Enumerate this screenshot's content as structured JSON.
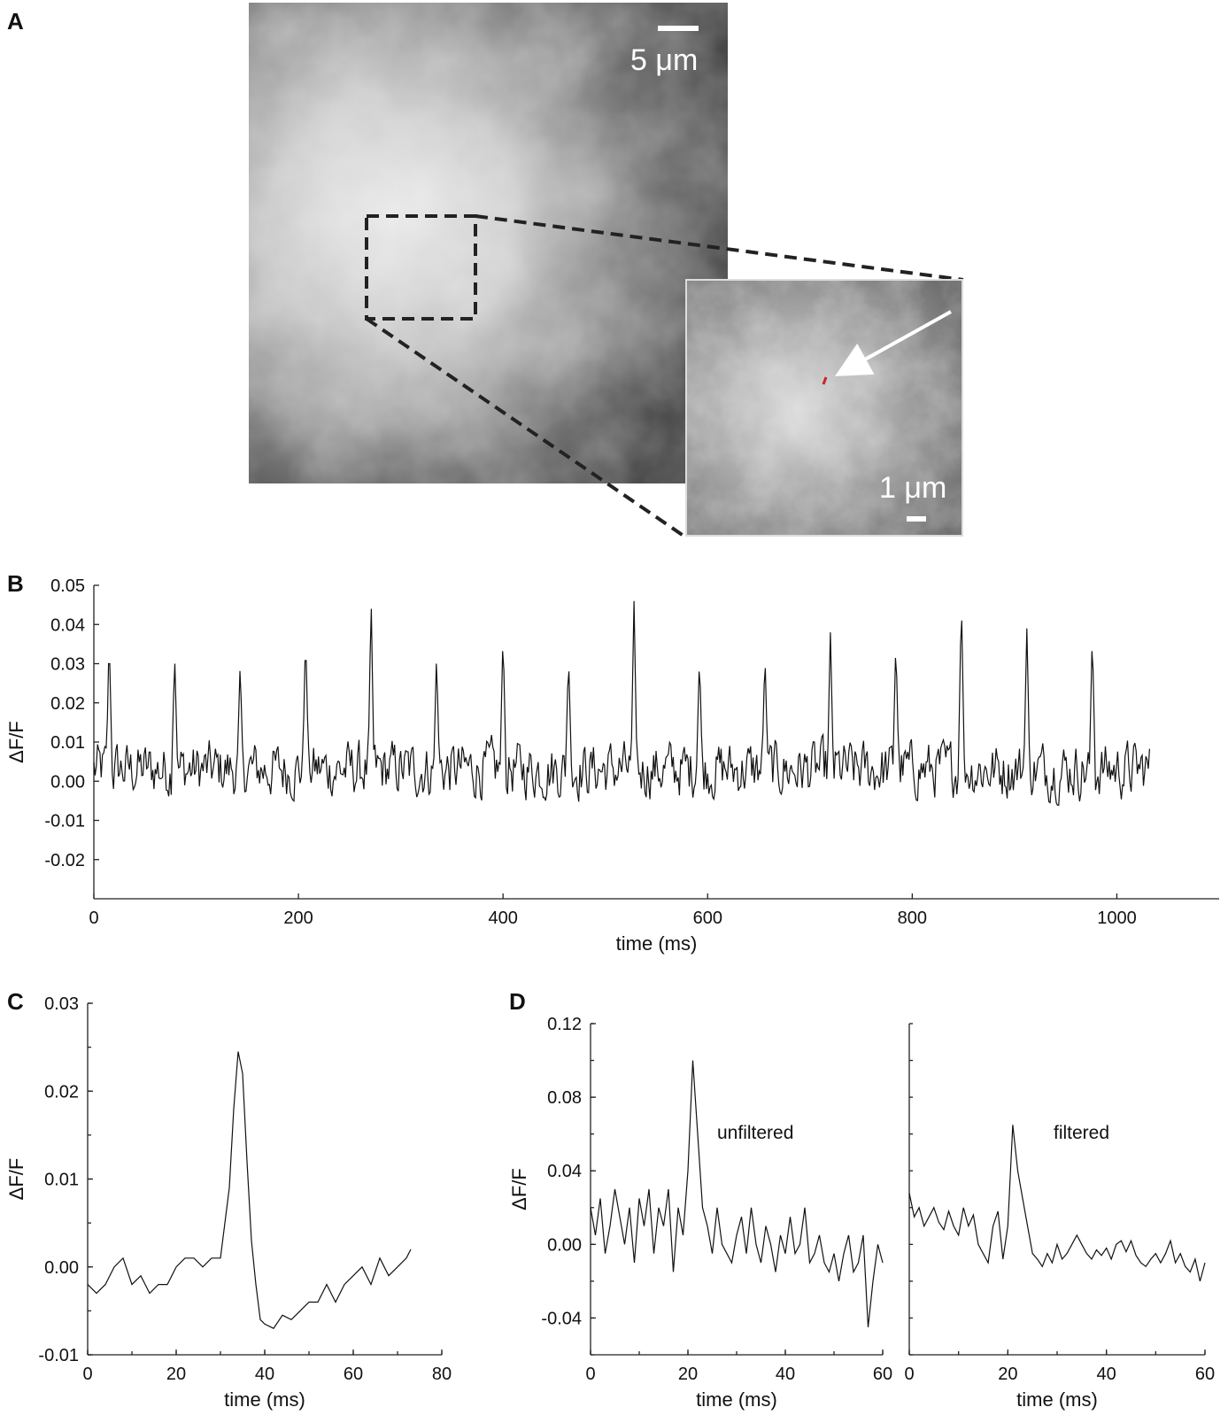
{
  "panels": {
    "A": {
      "letter": "A",
      "scalebar_main": "5 μm",
      "scalebar_inset": "1 μm"
    },
    "B": {
      "letter": "B"
    },
    "C": {
      "letter": "C"
    },
    "D": {
      "letter": "D",
      "annotation_left": "unfiltered",
      "annotation_right": "filtered"
    }
  },
  "chart_data": [
    {
      "panel": "B",
      "type": "line",
      "xlabel": "time (ms)",
      "ylabel": "ΔF/F",
      "xlim": [
        0,
        1100
      ],
      "ylim": [
        -0.03,
        0.05
      ],
      "xticks": [
        0,
        200,
        400,
        600,
        800,
        1000
      ],
      "xtick_labels": [
        "0",
        "200",
        "400",
        "600",
        "800",
        "1000"
      ],
      "yticks": [
        0.05,
        0.04,
        0.03,
        0.02,
        0.01,
        0.0,
        -0.01,
        -0.02
      ],
      "ytick_labels": [
        "0.05",
        "0.04",
        "0.03",
        "0.02",
        "0.01",
        "0.00",
        "-0.01",
        "-0.02"
      ],
      "x_end": 1033,
      "spike_times": [
        15,
        79,
        143,
        207,
        271,
        335,
        400,
        464,
        528,
        592,
        656,
        720,
        784,
        848,
        912,
        976
      ],
      "spike_peaks": [
        0.035,
        0.03,
        0.028,
        0.036,
        0.045,
        0.03,
        0.036,
        0.03,
        0.044,
        0.03,
        0.031,
        0.036,
        0.034,
        0.045,
        0.037,
        0.036
      ],
      "baseline_mean": 0.003,
      "noise_range": [
        -0.015,
        0.015
      ]
    },
    {
      "panel": "C",
      "type": "line",
      "xlabel": "time (ms)",
      "ylabel": "ΔF/F",
      "xlim": [
        0,
        80
      ],
      "ylim": [
        -0.01,
        0.03
      ],
      "xticks": [
        0,
        20,
        40,
        60,
        80
      ],
      "xtick_labels": [
        "0",
        "20",
        "40",
        "60",
        "80"
      ],
      "yticks": [
        0.03,
        0.02,
        0.01,
        0.0,
        -0.01
      ],
      "ytick_labels": [
        "0.03",
        "0.02",
        "0.01",
        "0.00",
        "-0.01"
      ],
      "x": [
        0,
        2,
        4,
        6,
        8,
        10,
        12,
        14,
        16,
        18,
        20,
        22,
        24,
        26,
        28,
        30,
        32,
        33,
        34,
        35,
        36,
        37,
        38,
        39,
        40,
        42,
        44,
        46,
        48,
        50,
        52,
        54,
        56,
        58,
        60,
        62,
        64,
        66,
        68,
        70,
        72,
        73
      ],
      "y": [
        -0.002,
        -0.003,
        -0.002,
        0.0,
        0.001,
        -0.002,
        -0.001,
        -0.003,
        -0.002,
        -0.002,
        0.0,
        0.001,
        0.001,
        0.0,
        0.001,
        0.001,
        0.009,
        0.018,
        0.0245,
        0.022,
        0.012,
        0.003,
        -0.002,
        -0.006,
        -0.0065,
        -0.007,
        -0.0055,
        -0.006,
        -0.005,
        -0.004,
        -0.004,
        -0.002,
        -0.004,
        -0.002,
        -0.001,
        0.0,
        -0.002,
        0.001,
        -0.001,
        0.0,
        0.001,
        0.002
      ]
    },
    {
      "panel": "D-left",
      "type": "line",
      "xlabel": "time (ms)",
      "ylabel": "ΔF/F",
      "xlim": [
        0,
        60
      ],
      "ylim": [
        -0.06,
        0.12
      ],
      "xticks": [
        0,
        20,
        40,
        60
      ],
      "xtick_labels": [
        "0",
        "20",
        "40",
        "60"
      ],
      "yticks": [
        0.12,
        0.08,
        0.04,
        0.0,
        -0.04
      ],
      "ytick_labels": [
        "0.12",
        "0.08",
        "0.04",
        "0.00",
        "-0.04"
      ],
      "x": [
        0,
        1,
        2,
        3,
        4,
        5,
        6,
        7,
        8,
        9,
        10,
        11,
        12,
        13,
        14,
        15,
        16,
        17,
        18,
        19,
        20,
        21,
        22,
        23,
        24,
        25,
        26,
        27,
        28,
        29,
        30,
        31,
        32,
        33,
        34,
        35,
        36,
        37,
        38,
        39,
        40,
        41,
        42,
        43,
        44,
        45,
        46,
        47,
        48,
        49,
        50,
        51,
        52,
        53,
        54,
        55,
        56,
        57,
        58,
        59,
        60
      ],
      "y": [
        0.02,
        0.005,
        0.025,
        -0.005,
        0.01,
        0.03,
        0.015,
        0.0,
        0.02,
        -0.01,
        0.025,
        0.01,
        0.03,
        -0.005,
        0.02,
        0.01,
        0.03,
        -0.015,
        0.02,
        0.005,
        0.04,
        0.1,
        0.06,
        0.02,
        0.01,
        -0.005,
        0.02,
        0.0,
        -0.005,
        -0.01,
        0.005,
        0.015,
        -0.005,
        0.02,
        0.0,
        -0.01,
        0.01,
        0.0,
        -0.015,
        0.005,
        -0.005,
        0.015,
        -0.005,
        0.0,
        0.02,
        -0.01,
        -0.005,
        0.005,
        -0.01,
        -0.015,
        -0.005,
        -0.02,
        -0.005,
        0.005,
        -0.015,
        -0.01,
        0.005,
        -0.045,
        -0.02,
        0.0,
        -0.01
      ]
    },
    {
      "panel": "D-right",
      "type": "line",
      "xlabel": "time (ms)",
      "xlim": [
        0,
        60
      ],
      "ylim": [
        -0.06,
        0.12
      ],
      "xticks": [
        0,
        20,
        40,
        60
      ],
      "xtick_labels": [
        "0",
        "20",
        "40",
        "60"
      ],
      "x": [
        0,
        1,
        2,
        3,
        4,
        5,
        6,
        7,
        8,
        9,
        10,
        11,
        12,
        13,
        14,
        15,
        16,
        17,
        18,
        19,
        20,
        21,
        22,
        23,
        24,
        25,
        26,
        27,
        28,
        29,
        30,
        31,
        32,
        33,
        34,
        35,
        36,
        37,
        38,
        39,
        40,
        41,
        42,
        43,
        44,
        45,
        46,
        47,
        48,
        49,
        50,
        51,
        52,
        53,
        54,
        55,
        56,
        57,
        58,
        59,
        60
      ],
      "y": [
        0.028,
        0.015,
        0.02,
        0.01,
        0.015,
        0.02,
        0.012,
        0.008,
        0.018,
        0.01,
        0.005,
        0.02,
        0.01,
        0.016,
        0.0,
        -0.005,
        -0.01,
        0.01,
        0.018,
        -0.008,
        0.01,
        0.065,
        0.04,
        0.025,
        0.01,
        -0.005,
        -0.008,
        -0.012,
        -0.005,
        -0.01,
        0.0,
        -0.008,
        -0.005,
        0.0,
        0.005,
        0.0,
        -0.005,
        -0.008,
        -0.003,
        -0.006,
        -0.002,
        -0.008,
        0.0,
        0.002,
        -0.004,
        0.002,
        -0.006,
        -0.01,
        -0.012,
        -0.008,
        -0.005,
        -0.01,
        -0.005,
        0.002,
        -0.01,
        -0.005,
        -0.012,
        -0.015,
        -0.008,
        -0.02,
        -0.01
      ]
    }
  ]
}
